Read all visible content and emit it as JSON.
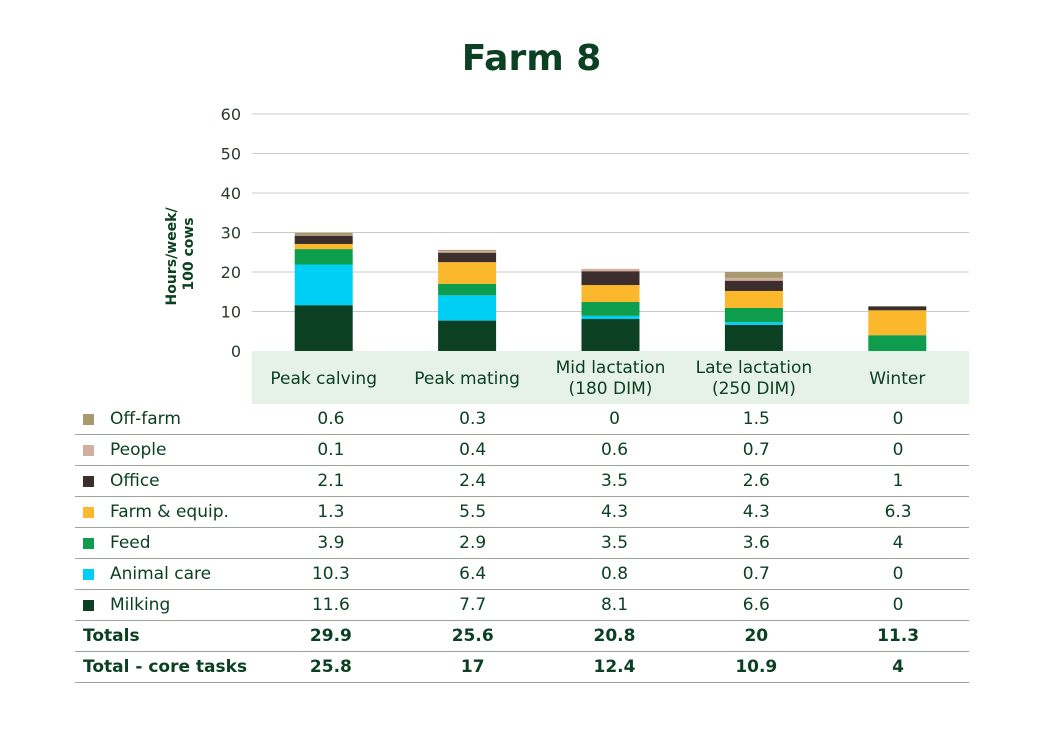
{
  "chart_data": {
    "type": "bar",
    "stacked": true,
    "title": "Farm 8",
    "ylabel_lines": [
      "Hours/week/",
      "100 cows"
    ],
    "ylim": [
      0,
      60
    ],
    "yticks": [
      0,
      10,
      20,
      30,
      40,
      50,
      60
    ],
    "grid": true,
    "categories": [
      {
        "lines": [
          "Peak calving"
        ]
      },
      {
        "lines": [
          "Peak mating"
        ]
      },
      {
        "lines": [
          "Mid lactation",
          "(180 DIM)"
        ]
      },
      {
        "lines": [
          "Late lactation",
          "(250 DIM)"
        ]
      },
      {
        "lines": [
          "Winter"
        ]
      }
    ],
    "series": [
      {
        "name": "Off-farm",
        "color": "#a89a6c",
        "values": [
          "0.6",
          "0.3",
          "0",
          "1.5",
          "0"
        ]
      },
      {
        "name": "People",
        "color": "#d3aea0",
        "values": [
          "0.1",
          "0.4",
          "0.6",
          "0.7",
          "0"
        ]
      },
      {
        "name": "Office",
        "color": "#3b2e2c",
        "values": [
          "2.1",
          "2.4",
          "3.5",
          "2.6",
          "1"
        ]
      },
      {
        "name": "Farm & equip.",
        "color": "#fbb82c",
        "values": [
          "1.3",
          "5.5",
          "4.3",
          "4.3",
          "6.3"
        ]
      },
      {
        "name": "Feed",
        "color": "#0e9c4d",
        "values": [
          "3.9",
          "2.9",
          "3.5",
          "3.6",
          "4"
        ]
      },
      {
        "name": "Animal care",
        "color": "#00cff5",
        "values": [
          "10.3",
          "6.4",
          "0.8",
          "0.7",
          "0"
        ]
      },
      {
        "name": "Milking",
        "color": "#0b4023",
        "values": [
          "11.6",
          "7.7",
          "8.1",
          "6.6",
          "0"
        ]
      }
    ],
    "totals": [
      {
        "name": "Totals",
        "values": [
          "29.9",
          "25.6",
          "20.8",
          "20",
          "11.3"
        ]
      },
      {
        "name": "Total - core tasks",
        "values": [
          "25.8",
          "17",
          "12.4",
          "10.9",
          "4"
        ]
      }
    ]
  }
}
